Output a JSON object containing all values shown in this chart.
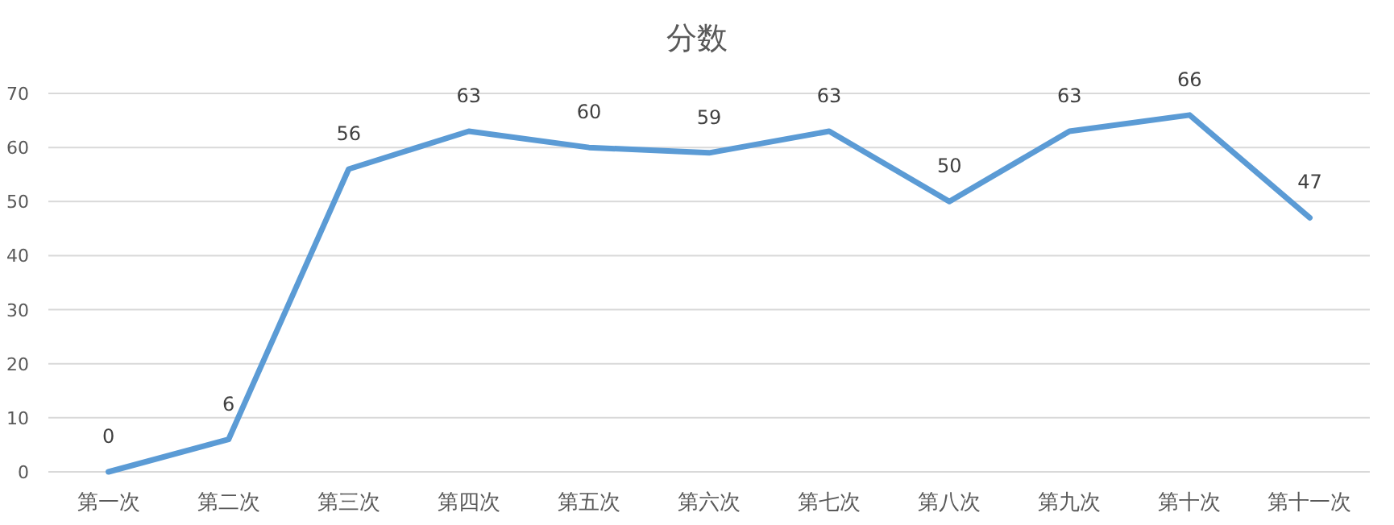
{
  "chart_data": {
    "type": "line",
    "title": "分数",
    "categories": [
      "第一次",
      "第二次",
      "第三次",
      "第四次",
      "第五次",
      "第六次",
      "第七次",
      "第八次",
      "第九次",
      "第十次",
      "第十一次"
    ],
    "values": [
      0,
      6,
      56,
      63,
      60,
      59,
      63,
      50,
      63,
      66,
      47
    ],
    "color": "#5b9bd5",
    "ylim": [
      0,
      70
    ],
    "yticks": [
      0,
      10,
      20,
      30,
      40,
      50,
      60,
      70
    ],
    "grid": "y",
    "data_labels": true,
    "marker": "none",
    "line_style": "solid"
  }
}
